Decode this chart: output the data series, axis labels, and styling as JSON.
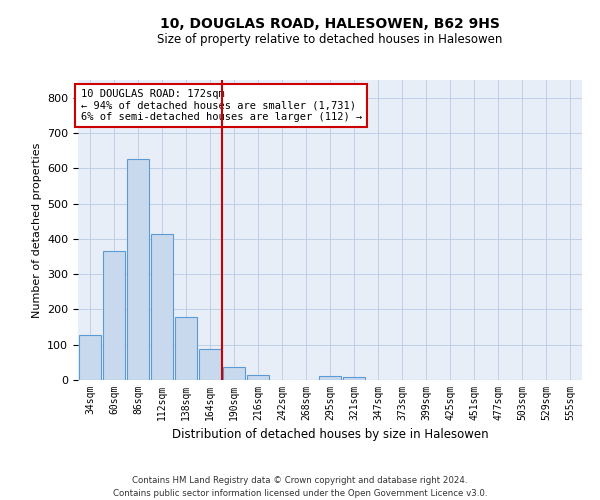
{
  "title": "10, DOUGLAS ROAD, HALESOWEN, B62 9HS",
  "subtitle": "Size of property relative to detached houses in Halesowen",
  "xlabel": "Distribution of detached houses by size in Halesowen",
  "ylabel": "Number of detached properties",
  "bin_labels": [
    "34sqm",
    "60sqm",
    "86sqm",
    "112sqm",
    "138sqm",
    "164sqm",
    "190sqm",
    "216sqm",
    "242sqm",
    "268sqm",
    "295sqm",
    "321sqm",
    "347sqm",
    "373sqm",
    "399sqm",
    "425sqm",
    "451sqm",
    "477sqm",
    "503sqm",
    "529sqm",
    "555sqm"
  ],
  "bar_heights": [
    128,
    365,
    625,
    415,
    178,
    88,
    37,
    15,
    0,
    0,
    10,
    8,
    0,
    0,
    0,
    0,
    0,
    0,
    0,
    0,
    0
  ],
  "bar_color": "#c9d9ed",
  "bar_edge_color": "#5b9bd5",
  "vline_x": 5.5,
  "vline_color": "#cc0000",
  "ylim": [
    0,
    850
  ],
  "yticks": [
    0,
    100,
    200,
    300,
    400,
    500,
    600,
    700,
    800
  ],
  "annotation_text": "10 DOUGLAS ROAD: 172sqm\n← 94% of detached houses are smaller (1,731)\n6% of semi-detached houses are larger (112) →",
  "annotation_box_color": "#cc0000",
  "footer_line1": "Contains HM Land Registry data © Crown copyright and database right 2024.",
  "footer_line2": "Contains public sector information licensed under the Open Government Licence v3.0.",
  "background_color": "#e8eef8"
}
